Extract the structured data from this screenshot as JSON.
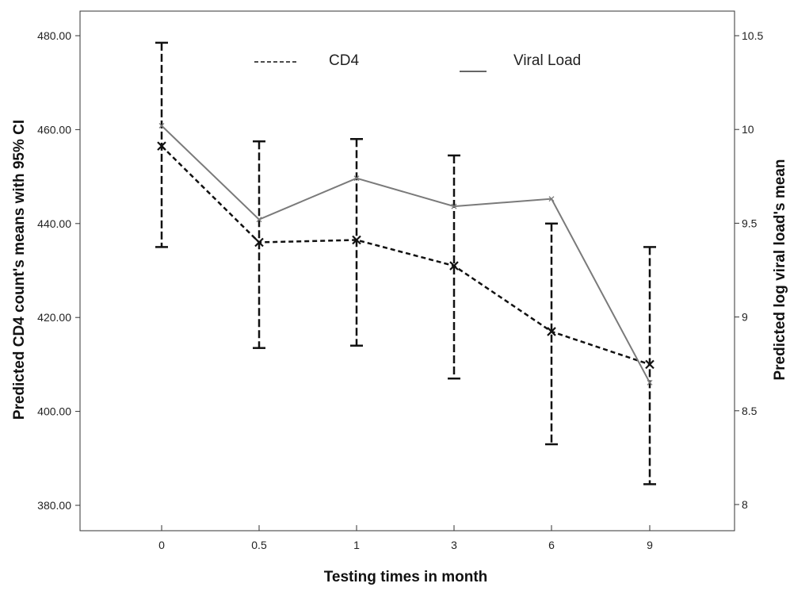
{
  "chart_data": {
    "type": "line",
    "categories": [
      "0",
      "0.5",
      "1",
      "3",
      "6",
      "9"
    ],
    "xlabel": "Testing times in month",
    "ylabel_left": "Predicted CD4 count's means with 95% CI",
    "ylabel_right": "Predicted log viral load's mean",
    "y_left": {
      "min": 380,
      "max": 480,
      "ticks": [
        380,
        400,
        420,
        440,
        460,
        480
      ],
      "tick_labels": [
        "380.00",
        "400.00",
        "420.00",
        "440.00",
        "460.00",
        "480.00"
      ]
    },
    "y_right": {
      "min": 8.0,
      "max": 10.5,
      "ticks": [
        8.0,
        8.5,
        9.0,
        9.5,
        10.0,
        10.5
      ],
      "tick_labels": [
        "8",
        "8.5",
        "9",
        "9.5",
        "10",
        "10.5"
      ]
    },
    "series": [
      {
        "name": "CD4",
        "axis": "left",
        "line_style": "dashed",
        "values": [
          456.5,
          436,
          436.5,
          431,
          417,
          410
        ],
        "ci_low": [
          435,
          413.5,
          414,
          407,
          393,
          384.5
        ],
        "ci_high": [
          478.5,
          457.5,
          458,
          454.5,
          440,
          435
        ]
      },
      {
        "name": "Viral Load",
        "axis": "right",
        "line_style": "solid",
        "values": [
          10.02,
          9.52,
          9.74,
          9.59,
          9.63,
          8.65
        ]
      }
    ],
    "legend": {
      "placement": "top-center",
      "entries": [
        "CD4",
        "Viral Load"
      ]
    },
    "grid": false
  },
  "colors": {
    "cd4_line": "#111111",
    "viral_line": "#7a7a7a",
    "axis": "#333333"
  }
}
